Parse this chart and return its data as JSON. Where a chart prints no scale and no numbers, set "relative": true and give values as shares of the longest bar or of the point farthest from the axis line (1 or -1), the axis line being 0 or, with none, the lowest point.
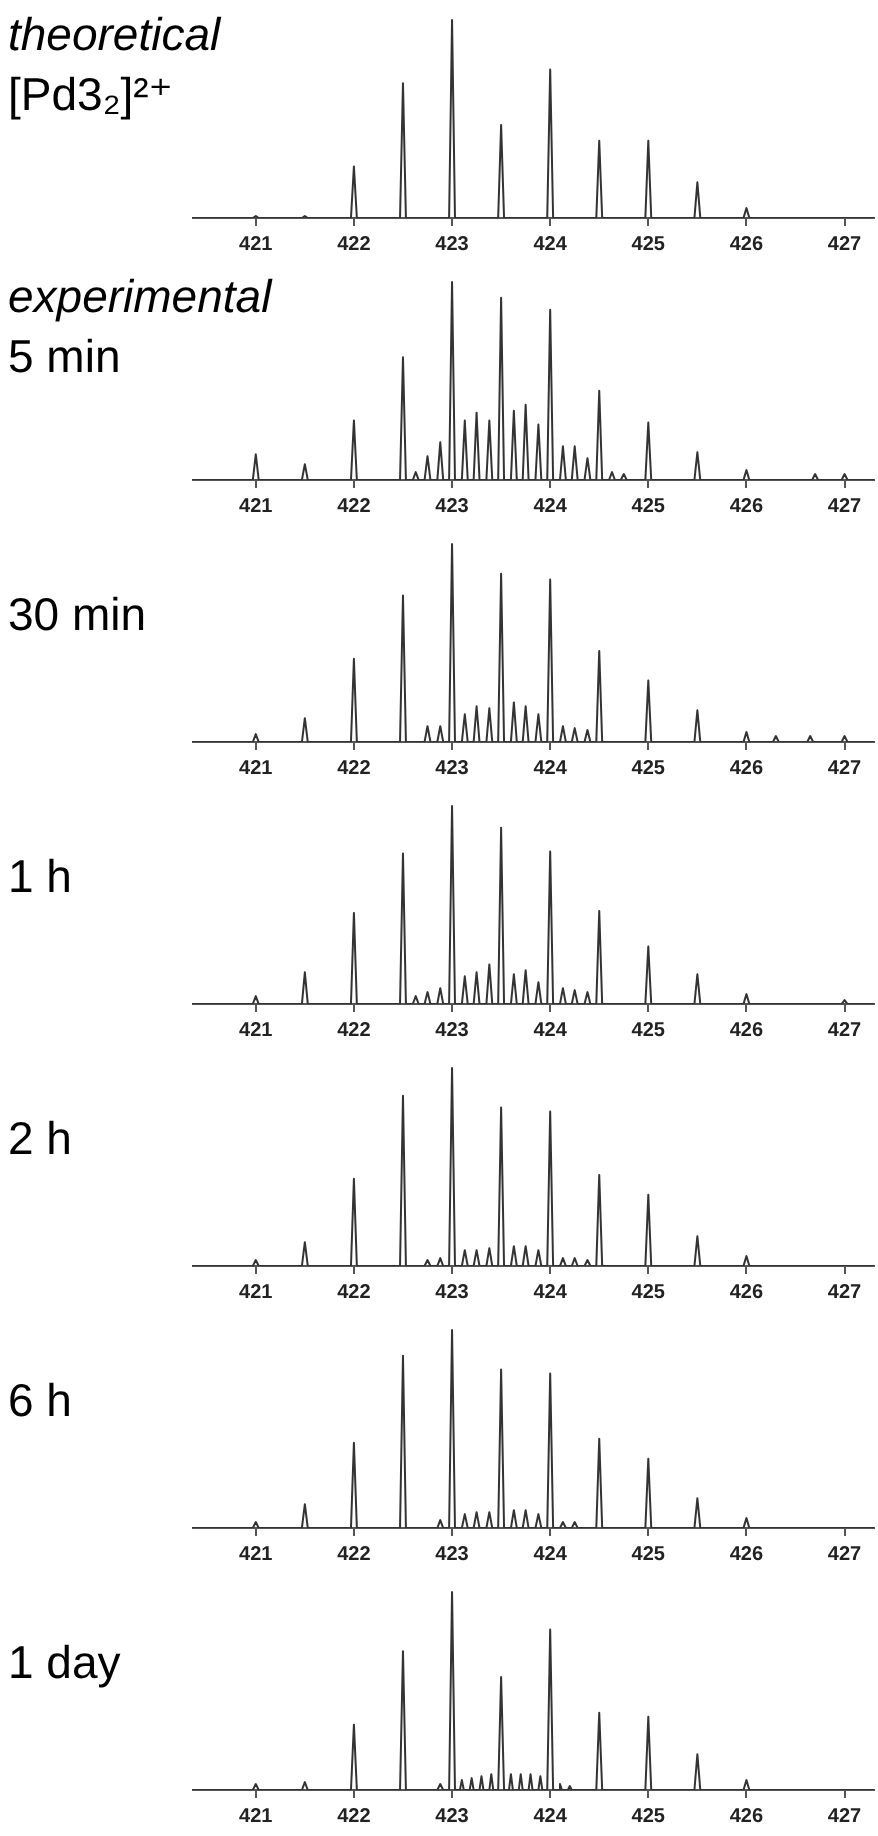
{
  "chart_data": [
    {
      "type": "line",
      "title": "theoretical",
      "subtitle": "[Pd3₂]²⁺",
      "relative": true,
      "tick_labels": "x",
      "color": "#333333",
      "xlim": [
        420.35,
        427.3
      ],
      "xticks": [
        421,
        422,
        423,
        424,
        425,
        426,
        427
      ],
      "x": [
        420.35,
        420.97,
        421,
        421.03,
        421.47,
        421.5,
        421.53,
        421.97,
        422,
        422.03,
        422.47,
        422.5,
        422.53,
        422.97,
        423,
        423.03,
        423.47,
        423.5,
        423.53,
        423.97,
        424,
        424.03,
        424.47,
        424.5,
        424.53,
        424.97,
        425,
        425.03,
        425.47,
        425.5,
        425.53,
        425.97,
        426,
        426.03,
        427.3
      ],
      "values": [
        0,
        0,
        0.01,
        0,
        0,
        0.01,
        0,
        0,
        0.26,
        0,
        0,
        0.68,
        0,
        0,
        1,
        0,
        0,
        0.47,
        0,
        0,
        0.75,
        0,
        0,
        0.39,
        0,
        0,
        0.39,
        0,
        0,
        0.18,
        0,
        0,
        0.05,
        0,
        0
      ]
    },
    {
      "type": "line",
      "title": "experimental",
      "subtitle": "5 min",
      "relative": true,
      "tick_labels": "x",
      "color": "#333333",
      "xlim": [
        420.35,
        427.3
      ],
      "xticks": [
        421,
        422,
        423,
        424,
        425,
        426,
        427
      ],
      "x": [
        420.35,
        420.97,
        421,
        421.03,
        421.47,
        421.5,
        421.53,
        421.97,
        422,
        422.03,
        422.47,
        422.5,
        422.53,
        422.6,
        422.63,
        422.66,
        422.72,
        422.75,
        422.78,
        422.85,
        422.88,
        422.91,
        422.97,
        423,
        423.03,
        423.1,
        423.13,
        423.16,
        423.22,
        423.25,
        423.28,
        423.35,
        423.38,
        423.41,
        423.47,
        423.5,
        423.53,
        423.6,
        423.63,
        423.66,
        423.72,
        423.75,
        423.78,
        423.85,
        423.88,
        423.91,
        423.97,
        424,
        424.03,
        424.1,
        424.13,
        424.16,
        424.22,
        424.25,
        424.28,
        424.35,
        424.38,
        424.41,
        424.47,
        424.5,
        424.53,
        424.6,
        424.63,
        424.66,
        424.72,
        424.75,
        424.78,
        424.97,
        425,
        425.03,
        425.47,
        425.5,
        425.53,
        425.97,
        426,
        426.03,
        426.67,
        426.7,
        426.73,
        426.97,
        427,
        427.03,
        427.3
      ],
      "values": [
        0,
        0,
        0.13,
        0,
        0,
        0.08,
        0,
        0,
        0.3,
        0,
        0,
        0.62,
        0,
        0,
        0.04,
        0,
        0,
        0.12,
        0,
        0,
        0.19,
        0,
        0,
        1,
        0,
        0,
        0.3,
        0,
        0,
        0.34,
        0,
        0,
        0.3,
        0,
        0,
        0.92,
        0,
        0,
        0.35,
        0,
        0,
        0.38,
        0,
        0,
        0.28,
        0,
        0,
        0.86,
        0,
        0,
        0.17,
        0,
        0,
        0.17,
        0,
        0,
        0.11,
        0,
        0,
        0.45,
        0,
        0,
        0.04,
        0,
        0,
        0.03,
        0,
        0,
        0.29,
        0,
        0,
        0.14,
        0,
        0,
        0.05,
        0,
        0,
        0.03,
        0,
        0,
        0.03,
        0,
        0
      ]
    },
    {
      "type": "line",
      "title": "30 min",
      "relative": true,
      "tick_labels": "x",
      "color": "#333333",
      "xlim": [
        420.35,
        427.3
      ],
      "xticks": [
        421,
        422,
        423,
        424,
        425,
        426,
        427
      ],
      "x": [
        420.35,
        420.97,
        421,
        421.03,
        421.47,
        421.5,
        421.53,
        421.97,
        422,
        422.03,
        422.47,
        422.5,
        422.53,
        422.72,
        422.75,
        422.78,
        422.85,
        422.88,
        422.91,
        422.97,
        423,
        423.03,
        423.1,
        423.13,
        423.16,
        423.22,
        423.25,
        423.28,
        423.35,
        423.38,
        423.41,
        423.47,
        423.5,
        423.53,
        423.6,
        423.63,
        423.66,
        423.72,
        423.75,
        423.78,
        423.85,
        423.88,
        423.91,
        423.97,
        424,
        424.03,
        424.1,
        424.13,
        424.16,
        424.22,
        424.25,
        424.28,
        424.35,
        424.38,
        424.41,
        424.47,
        424.5,
        424.53,
        424.97,
        425,
        425.03,
        425.47,
        425.5,
        425.53,
        425.97,
        426,
        426.03,
        426.27,
        426.3,
        426.33,
        426.62,
        426.65,
        426.68,
        426.97,
        427,
        427.03,
        427.3
      ],
      "values": [
        0,
        0,
        0.04,
        0,
        0,
        0.12,
        0,
        0,
        0.42,
        0,
        0,
        0.74,
        0,
        0,
        0.08,
        0,
        0,
        0.08,
        0,
        0,
        1,
        0,
        0,
        0.14,
        0,
        0,
        0.18,
        0,
        0,
        0.17,
        0,
        0,
        0.85,
        0,
        0,
        0.2,
        0,
        0,
        0.18,
        0,
        0,
        0.14,
        0,
        0,
        0.82,
        0,
        0,
        0.08,
        0,
        0,
        0.07,
        0,
        0,
        0.06,
        0,
        0,
        0.46,
        0,
        0,
        0.31,
        0,
        0,
        0.16,
        0,
        0,
        0.05,
        0,
        0,
        0.03,
        0,
        0,
        0.03,
        0,
        0,
        0.03,
        0,
        0
      ]
    },
    {
      "type": "line",
      "title": "1 h",
      "relative": true,
      "tick_labels": "x",
      "color": "#333333",
      "xlim": [
        420.35,
        427.3
      ],
      "xticks": [
        421,
        422,
        423,
        424,
        425,
        426,
        427
      ],
      "x": [
        420.35,
        420.97,
        421,
        421.03,
        421.47,
        421.5,
        421.53,
        421.97,
        422,
        422.03,
        422.47,
        422.5,
        422.53,
        422.6,
        422.63,
        422.66,
        422.72,
        422.75,
        422.78,
        422.85,
        422.88,
        422.91,
        422.97,
        423,
        423.03,
        423.1,
        423.13,
        423.16,
        423.22,
        423.25,
        423.28,
        423.35,
        423.38,
        423.41,
        423.47,
        423.5,
        423.53,
        423.6,
        423.63,
        423.66,
        423.72,
        423.75,
        423.78,
        423.85,
        423.88,
        423.91,
        423.97,
        424,
        424.03,
        424.1,
        424.13,
        424.16,
        424.22,
        424.25,
        424.28,
        424.35,
        424.38,
        424.41,
        424.47,
        424.5,
        424.53,
        424.97,
        425,
        425.03,
        425.47,
        425.5,
        425.53,
        425.97,
        426,
        426.03,
        426.97,
        427,
        427.03,
        427.3
      ],
      "values": [
        0,
        0,
        0.04,
        0,
        0,
        0.16,
        0,
        0,
        0.46,
        0,
        0,
        0.76,
        0,
        0,
        0.04,
        0,
        0,
        0.06,
        0,
        0,
        0.08,
        0,
        0,
        1,
        0,
        0,
        0.14,
        0,
        0,
        0.16,
        0,
        0,
        0.2,
        0,
        0,
        0.89,
        0,
        0,
        0.15,
        0,
        0,
        0.17,
        0,
        0,
        0.11,
        0,
        0,
        0.77,
        0,
        0,
        0.08,
        0,
        0,
        0.07,
        0,
        0,
        0.06,
        0,
        0,
        0.47,
        0,
        0,
        0.29,
        0,
        0,
        0.15,
        0,
        0,
        0.05,
        0,
        0,
        0.02,
        0,
        0
      ]
    },
    {
      "type": "line",
      "title": "2 h",
      "relative": true,
      "tick_labels": "x",
      "color": "#333333",
      "xlim": [
        420.35,
        427.3
      ],
      "xticks": [
        421,
        422,
        423,
        424,
        425,
        426,
        427
      ],
      "x": [
        420.35,
        420.97,
        421,
        421.03,
        421.47,
        421.5,
        421.53,
        421.97,
        422,
        422.03,
        422.47,
        422.5,
        422.53,
        422.72,
        422.75,
        422.78,
        422.85,
        422.88,
        422.91,
        422.97,
        423,
        423.03,
        423.1,
        423.13,
        423.16,
        423.22,
        423.25,
        423.28,
        423.35,
        423.38,
        423.41,
        423.47,
        423.5,
        423.53,
        423.6,
        423.63,
        423.66,
        423.72,
        423.75,
        423.78,
        423.85,
        423.88,
        423.91,
        423.97,
        424,
        424.03,
        424.1,
        424.13,
        424.16,
        424.22,
        424.25,
        424.28,
        424.35,
        424.38,
        424.41,
        424.47,
        424.5,
        424.53,
        424.97,
        425,
        425.03,
        425.47,
        425.5,
        425.53,
        425.97,
        426,
        426.03,
        427.3
      ],
      "values": [
        0,
        0,
        0.03,
        0,
        0,
        0.12,
        0,
        0,
        0.44,
        0,
        0,
        0.86,
        0,
        0,
        0.03,
        0,
        0,
        0.04,
        0,
        0,
        1,
        0,
        0,
        0.08,
        0,
        0,
        0.08,
        0,
        0,
        0.09,
        0,
        0,
        0.8,
        0,
        0,
        0.1,
        0,
        0,
        0.1,
        0,
        0,
        0.08,
        0,
        0,
        0.78,
        0,
        0,
        0.04,
        0,
        0,
        0.04,
        0,
        0,
        0.03,
        0,
        0,
        0.46,
        0,
        0,
        0.36,
        0,
        0,
        0.15,
        0,
        0,
        0.05,
        0,
        0
      ]
    },
    {
      "type": "line",
      "title": "6 h",
      "relative": true,
      "tick_labels": "x",
      "color": "#333333",
      "xlim": [
        420.35,
        427.3
      ],
      "xticks": [
        421,
        422,
        423,
        424,
        425,
        426,
        427
      ],
      "x": [
        420.35,
        420.97,
        421,
        421.03,
        421.47,
        421.5,
        421.53,
        421.97,
        422,
        422.03,
        422.47,
        422.5,
        422.53,
        422.85,
        422.88,
        422.91,
        422.97,
        423,
        423.03,
        423.1,
        423.13,
        423.16,
        423.22,
        423.25,
        423.28,
        423.35,
        423.38,
        423.41,
        423.47,
        423.5,
        423.53,
        423.6,
        423.63,
        423.66,
        423.72,
        423.75,
        423.78,
        423.85,
        423.88,
        423.91,
        423.97,
        424,
        424.03,
        424.1,
        424.13,
        424.16,
        424.22,
        424.25,
        424.28,
        424.47,
        424.5,
        424.53,
        424.97,
        425,
        425.03,
        425.47,
        425.5,
        425.53,
        425.97,
        426,
        426.03,
        427.3
      ],
      "values": [
        0,
        0,
        0.03,
        0,
        0,
        0.12,
        0,
        0,
        0.43,
        0,
        0,
        0.87,
        0,
        0,
        0.04,
        0,
        0,
        1,
        0,
        0,
        0.07,
        0,
        0,
        0.08,
        0,
        0,
        0.08,
        0,
        0,
        0.8,
        0,
        0,
        0.09,
        0,
        0,
        0.09,
        0,
        0,
        0.07,
        0,
        0,
        0.78,
        0,
        0,
        0.03,
        0,
        0,
        0.03,
        0,
        0,
        0.45,
        0,
        0,
        0.35,
        0,
        0,
        0.15,
        0,
        0,
        0.05,
        0,
        0
      ]
    },
    {
      "type": "line",
      "title": "1 day",
      "relative": true,
      "tick_labels": "x",
      "color": "#333333",
      "xlim": [
        420.35,
        427.3
      ],
      "xticks": [
        421,
        422,
        423,
        424,
        425,
        426,
        427
      ],
      "x": [
        420.35,
        420.97,
        421,
        421.03,
        421.47,
        421.5,
        421.53,
        421.97,
        422,
        422.03,
        422.47,
        422.5,
        422.53,
        422.85,
        422.88,
        422.91,
        422.97,
        423,
        423.03,
        423.08,
        423.1,
        423.12,
        423.18,
        423.2,
        423.22,
        423.28,
        423.3,
        423.32,
        423.38,
        423.4,
        423.42,
        423.47,
        423.5,
        423.53,
        423.58,
        423.6,
        423.62,
        423.68,
        423.7,
        423.72,
        423.78,
        423.8,
        423.82,
        423.88,
        423.9,
        423.92,
        423.97,
        424,
        424.03,
        424.08,
        424.1,
        424.12,
        424.18,
        424.2,
        424.22,
        424.47,
        424.5,
        424.53,
        424.97,
        425,
        425.03,
        425.47,
        425.5,
        425.53,
        425.97,
        426,
        426.03,
        427.3
      ],
      "values": [
        0,
        0,
        0.03,
        0,
        0,
        0.04,
        0,
        0,
        0.33,
        0,
        0,
        0.7,
        0,
        0,
        0.03,
        0,
        0,
        1,
        0,
        0,
        0.05,
        0,
        0,
        0.06,
        0,
        0,
        0.07,
        0,
        0,
        0.08,
        0,
        0,
        0.57,
        0,
        0,
        0.08,
        0,
        0,
        0.08,
        0,
        0,
        0.08,
        0,
        0,
        0.07,
        0,
        0,
        0.81,
        0,
        0,
        0.03,
        0,
        0,
        0.02,
        0,
        0,
        0.39,
        0,
        0,
        0.37,
        0,
        0,
        0.18,
        0,
        0,
        0.05,
        0,
        0
      ]
    }
  ]
}
